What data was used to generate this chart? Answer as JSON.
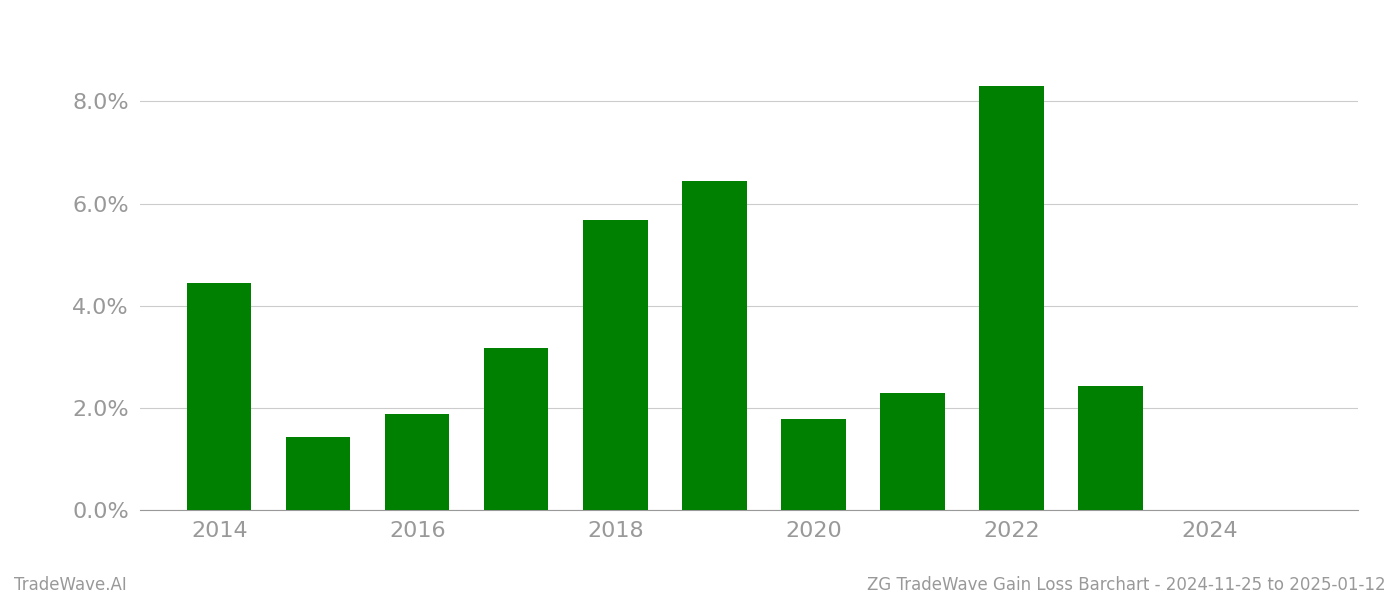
{
  "years": [
    2014,
    2015,
    2016,
    2017,
    2018,
    2019,
    2020,
    2021,
    2022,
    2023
  ],
  "values": [
    0.0445,
    0.0142,
    0.0188,
    0.0318,
    0.0568,
    0.0645,
    0.0178,
    0.023,
    0.083,
    0.0242
  ],
  "bar_color": "#008000",
  "background_color": "#ffffff",
  "grid_color": "#cccccc",
  "footer_left": "TradeWave.AI",
  "footer_right": "ZG TradeWave Gain Loss Barchart - 2024-11-25 to 2025-01-12",
  "footer_color": "#999999",
  "footer_fontsize": 12,
  "tick_color": "#999999",
  "tick_fontsize": 16,
  "ylim": [
    0,
    0.094
  ],
  "bar_width": 0.65,
  "xlim_left": 2013.2,
  "xlim_right": 2025.5
}
